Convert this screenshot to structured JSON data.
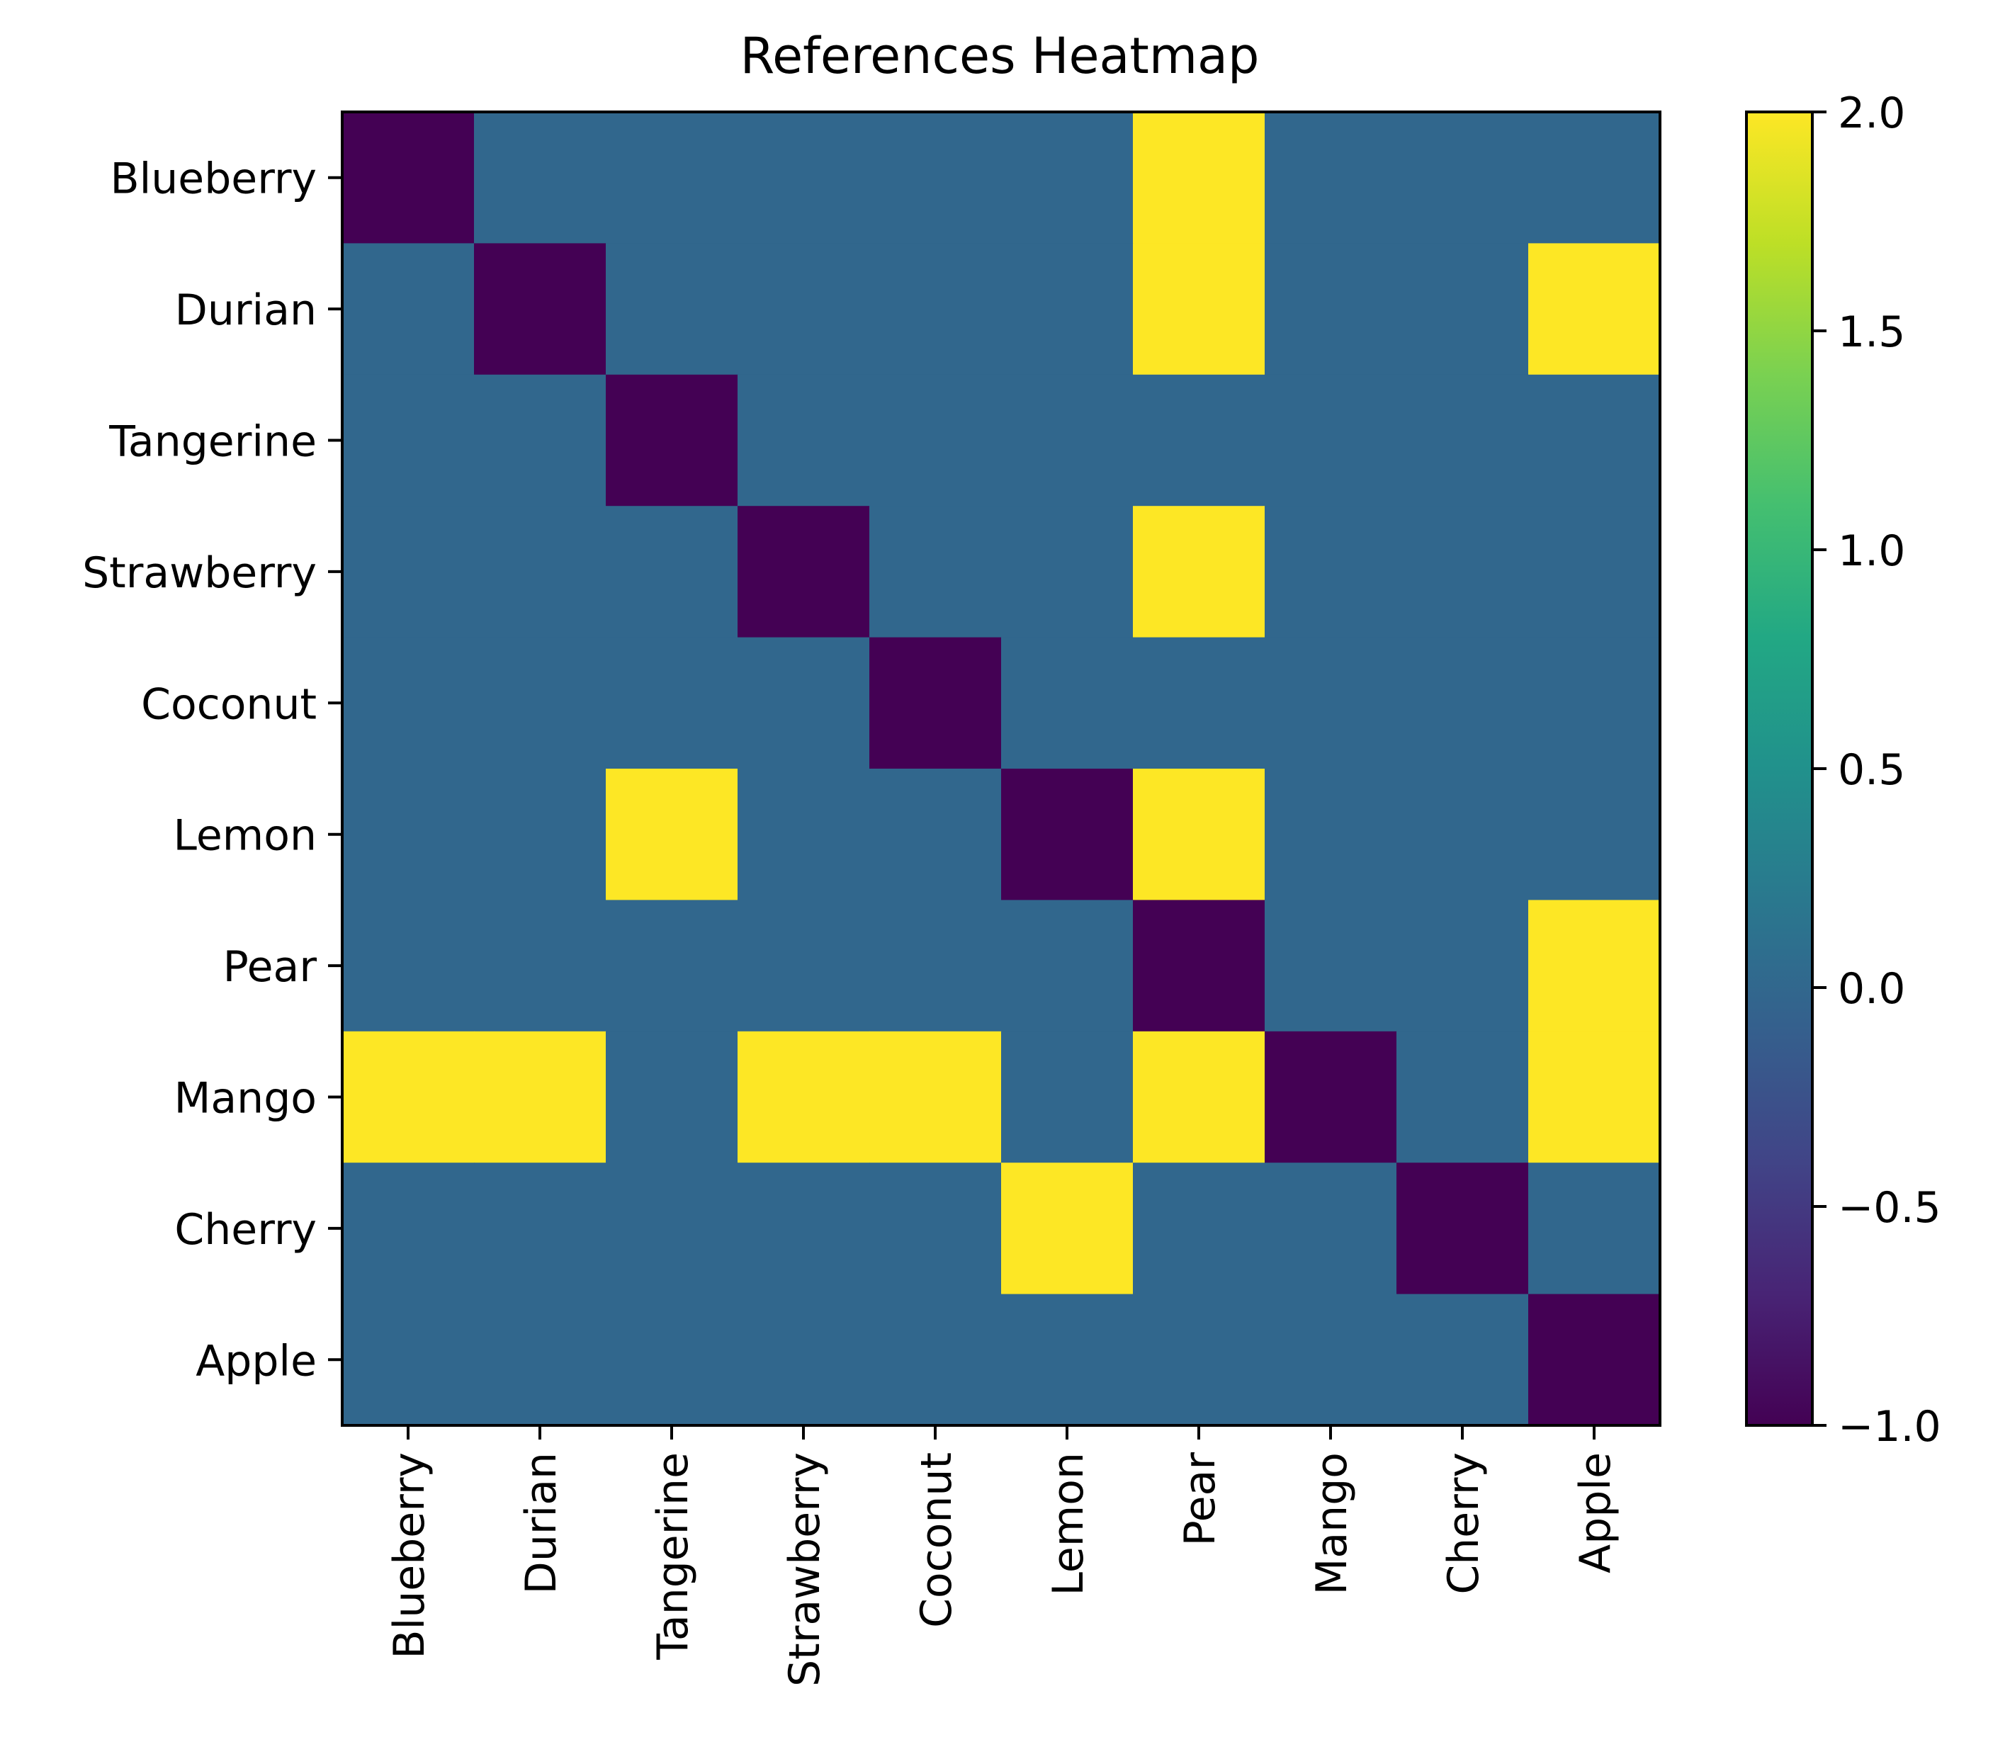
{
  "chart_data": {
    "type": "heatmap",
    "title": "References Heatmap",
    "xlabel": "",
    "ylabel": "",
    "x_labels": [
      "Blueberry",
      "Durian",
      "Tangerine",
      "Strawberry",
      "Coconut",
      "Lemon",
      "Pear",
      "Mango",
      "Cherry",
      "Apple"
    ],
    "y_labels": [
      "Blueberry",
      "Durian",
      "Tangerine",
      "Strawberry",
      "Coconut",
      "Lemon",
      "Pear",
      "Mango",
      "Cherry",
      "Apple"
    ],
    "values": [
      [
        -1,
        0,
        0,
        0,
        0,
        0,
        2,
        0,
        0,
        0
      ],
      [
        0,
        -1,
        0,
        0,
        0,
        0,
        2,
        0,
        0,
        2
      ],
      [
        0,
        0,
        -1,
        0,
        0,
        0,
        0,
        0,
        0,
        0
      ],
      [
        0,
        0,
        0,
        -1,
        0,
        0,
        2,
        0,
        0,
        0
      ],
      [
        0,
        0,
        0,
        0,
        -1,
        0,
        0,
        0,
        0,
        0
      ],
      [
        0,
        0,
        2,
        0,
        0,
        -1,
        2,
        0,
        0,
        0
      ],
      [
        0,
        0,
        0,
        0,
        0,
        0,
        -1,
        0,
        0,
        2
      ],
      [
        2,
        2,
        0,
        2,
        2,
        0,
        2,
        -1,
        0,
        2
      ],
      [
        0,
        0,
        0,
        0,
        0,
        2,
        0,
        0,
        -1,
        0
      ],
      [
        0,
        0,
        0,
        0,
        0,
        0,
        0,
        0,
        0,
        -1
      ]
    ],
    "colormap": "viridis",
    "vmin": -1.0,
    "vmax": 2.0,
    "colorbar_ticks": [
      2.0,
      1.5,
      1.0,
      0.5,
      0.0,
      -0.5,
      -1.0
    ],
    "colorbar_tick_labels": [
      "2.0",
      "1.5",
      "1.0",
      "0.5",
      "0.0",
      "−0.5",
      "−1.0"
    ],
    "grid": false,
    "colors": {
      "low": "#440154",
      "mid": "#31688e",
      "high": "#fde725"
    }
  }
}
